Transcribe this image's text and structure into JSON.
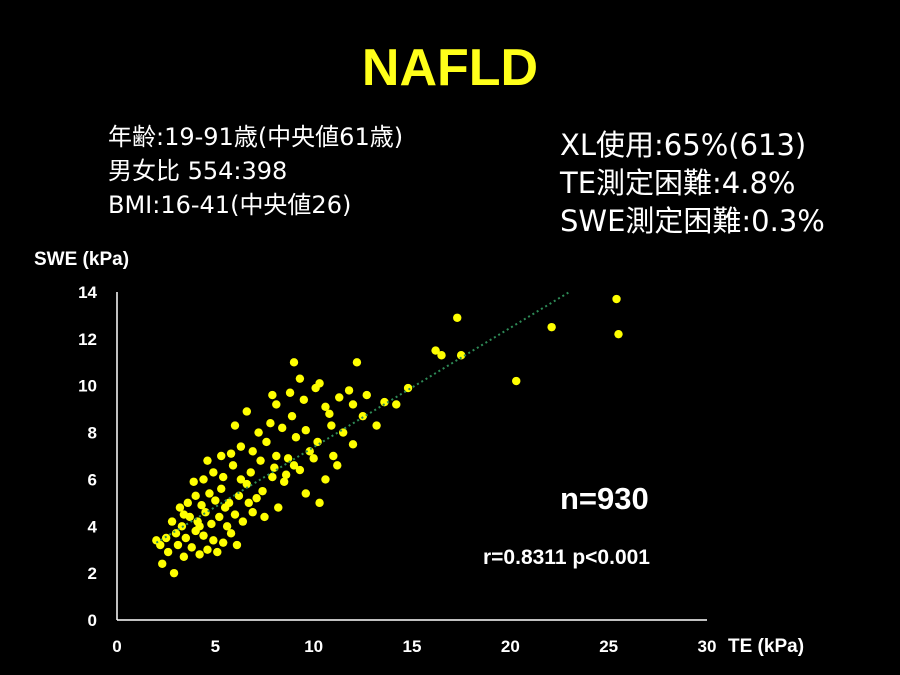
{
  "title": "NAFLD",
  "demographics": {
    "age": "年齢:19-91歳(中央値61歳)",
    "sex_ratio": "男女比 554:398",
    "bmi": "BMI:16-41(中央値26)"
  },
  "stats": {
    "xl_use": "XL使用:65%(613)",
    "te_difficulty": "TE測定困難:4.8%",
    "swe_difficulty": "SWE測定困難:0.3%"
  },
  "annotations": {
    "n": "n=930",
    "correlation": "r=0.8311 p<0.001"
  },
  "colors": {
    "background": "#000000",
    "title": "#ffff1a",
    "points": "#ffff00",
    "trendline": "#2e8b57"
  },
  "chart_data": {
    "type": "scatter",
    "xlabel": "TE (kPa)",
    "ylabel": "SWE (kPa)",
    "xlim": [
      0,
      30
    ],
    "ylim": [
      0,
      14
    ],
    "xticks": [
      "0",
      "5",
      "10",
      "15",
      "20",
      "25",
      "30"
    ],
    "yticks": [
      "0",
      "2",
      "4",
      "6",
      "8",
      "10",
      "12",
      "14"
    ],
    "grid": false,
    "trendline": {
      "x": [
        2,
        23
      ],
      "y": [
        3.3,
        14
      ]
    },
    "points_sample": [
      [
        2.9,
        2.0
      ],
      [
        2.3,
        2.4
      ],
      [
        2.6,
        2.9
      ],
      [
        3.4,
        2.7
      ],
      [
        3.1,
        3.2
      ],
      [
        3.8,
        3.1
      ],
      [
        4.2,
        2.8
      ],
      [
        4.6,
        3.0
      ],
      [
        5.1,
        2.9
      ],
      [
        2.5,
        3.5
      ],
      [
        3.0,
        3.7
      ],
      [
        3.5,
        3.5
      ],
      [
        4.0,
        3.8
      ],
      [
        4.4,
        3.6
      ],
      [
        4.9,
        3.4
      ],
      [
        5.4,
        3.3
      ],
      [
        5.8,
        3.7
      ],
      [
        6.1,
        3.2
      ],
      [
        2.8,
        4.2
      ],
      [
        3.3,
        4.0
      ],
      [
        3.7,
        4.4
      ],
      [
        4.1,
        4.2
      ],
      [
        4.5,
        4.6
      ],
      [
        4.8,
        4.1
      ],
      [
        5.2,
        4.4
      ],
      [
        5.6,
        4.0
      ],
      [
        6.0,
        4.5
      ],
      [
        6.4,
        4.2
      ],
      [
        6.9,
        4.6
      ],
      [
        3.2,
        4.8
      ],
      [
        3.6,
        5.0
      ],
      [
        4.0,
        5.3
      ],
      [
        4.3,
        4.9
      ],
      [
        4.7,
        5.4
      ],
      [
        5.0,
        5.1
      ],
      [
        5.3,
        5.6
      ],
      [
        5.7,
        5.0
      ],
      [
        6.2,
        5.3
      ],
      [
        6.6,
        5.8
      ],
      [
        7.1,
        5.2
      ],
      [
        7.5,
        4.4
      ],
      [
        8.2,
        4.8
      ],
      [
        4.4,
        6.0
      ],
      [
        4.9,
        6.3
      ],
      [
        5.4,
        6.1
      ],
      [
        5.9,
        6.6
      ],
      [
        6.3,
        6.0
      ],
      [
        6.8,
        6.3
      ],
      [
        7.3,
        6.8
      ],
      [
        7.9,
        6.1
      ],
      [
        8.5,
        5.9
      ],
      [
        9.0,
        6.6
      ],
      [
        5.8,
        7.1
      ],
      [
        6.3,
        7.4
      ],
      [
        6.9,
        7.2
      ],
      [
        7.6,
        7.6
      ],
      [
        8.1,
        7.0
      ],
      [
        8.7,
        6.9
      ],
      [
        9.3,
        6.4
      ],
      [
        10.0,
        6.9
      ],
      [
        10.6,
        6.0
      ],
      [
        11.2,
        6.6
      ],
      [
        9.6,
        5.4
      ],
      [
        10.3,
        5.0
      ],
      [
        7.2,
        8.0
      ],
      [
        7.8,
        8.4
      ],
      [
        8.4,
        8.2
      ],
      [
        8.9,
        8.7
      ],
      [
        9.6,
        8.1
      ],
      [
        10.2,
        7.6
      ],
      [
        10.9,
        8.3
      ],
      [
        11.5,
        8.0
      ],
      [
        12.0,
        7.5
      ],
      [
        8.1,
        9.2
      ],
      [
        8.8,
        9.7
      ],
      [
        9.5,
        9.4
      ],
      [
        10.1,
        9.9
      ],
      [
        10.6,
        9.1
      ],
      [
        11.3,
        9.5
      ],
      [
        12.0,
        9.2
      ],
      [
        12.7,
        9.6
      ],
      [
        13.2,
        8.3
      ],
      [
        9.0,
        11.0
      ],
      [
        10.3,
        10.1
      ],
      [
        12.2,
        11.0
      ],
      [
        14.2,
        9.2
      ],
      [
        14.8,
        9.9
      ],
      [
        16.2,
        11.5
      ],
      [
        17.3,
        12.9
      ],
      [
        17.5,
        11.3
      ],
      [
        16.5,
        11.3
      ],
      [
        20.3,
        10.2
      ],
      [
        22.1,
        12.5
      ],
      [
        25.4,
        13.7
      ],
      [
        25.5,
        12.2
      ],
      [
        3.9,
        5.9
      ],
      [
        4.6,
        6.8
      ],
      [
        5.3,
        7.0
      ],
      [
        6.0,
        8.3
      ],
      [
        6.6,
        8.9
      ],
      [
        3.4,
        4.5
      ],
      [
        4.2,
        4.0
      ],
      [
        2.2,
        3.2
      ],
      [
        2.0,
        3.4
      ],
      [
        5.5,
        4.8
      ],
      [
        6.7,
        5.0
      ],
      [
        7.4,
        5.5
      ],
      [
        8.0,
        6.5
      ],
      [
        9.8,
        7.2
      ],
      [
        11.0,
        7.0
      ],
      [
        12.5,
        8.7
      ],
      [
        13.6,
        9.3
      ],
      [
        7.9,
        9.6
      ],
      [
        9.3,
        10.3
      ],
      [
        11.8,
        9.8
      ],
      [
        10.8,
        8.8
      ],
      [
        8.6,
        6.2
      ],
      [
        9.1,
        7.8
      ]
    ]
  }
}
